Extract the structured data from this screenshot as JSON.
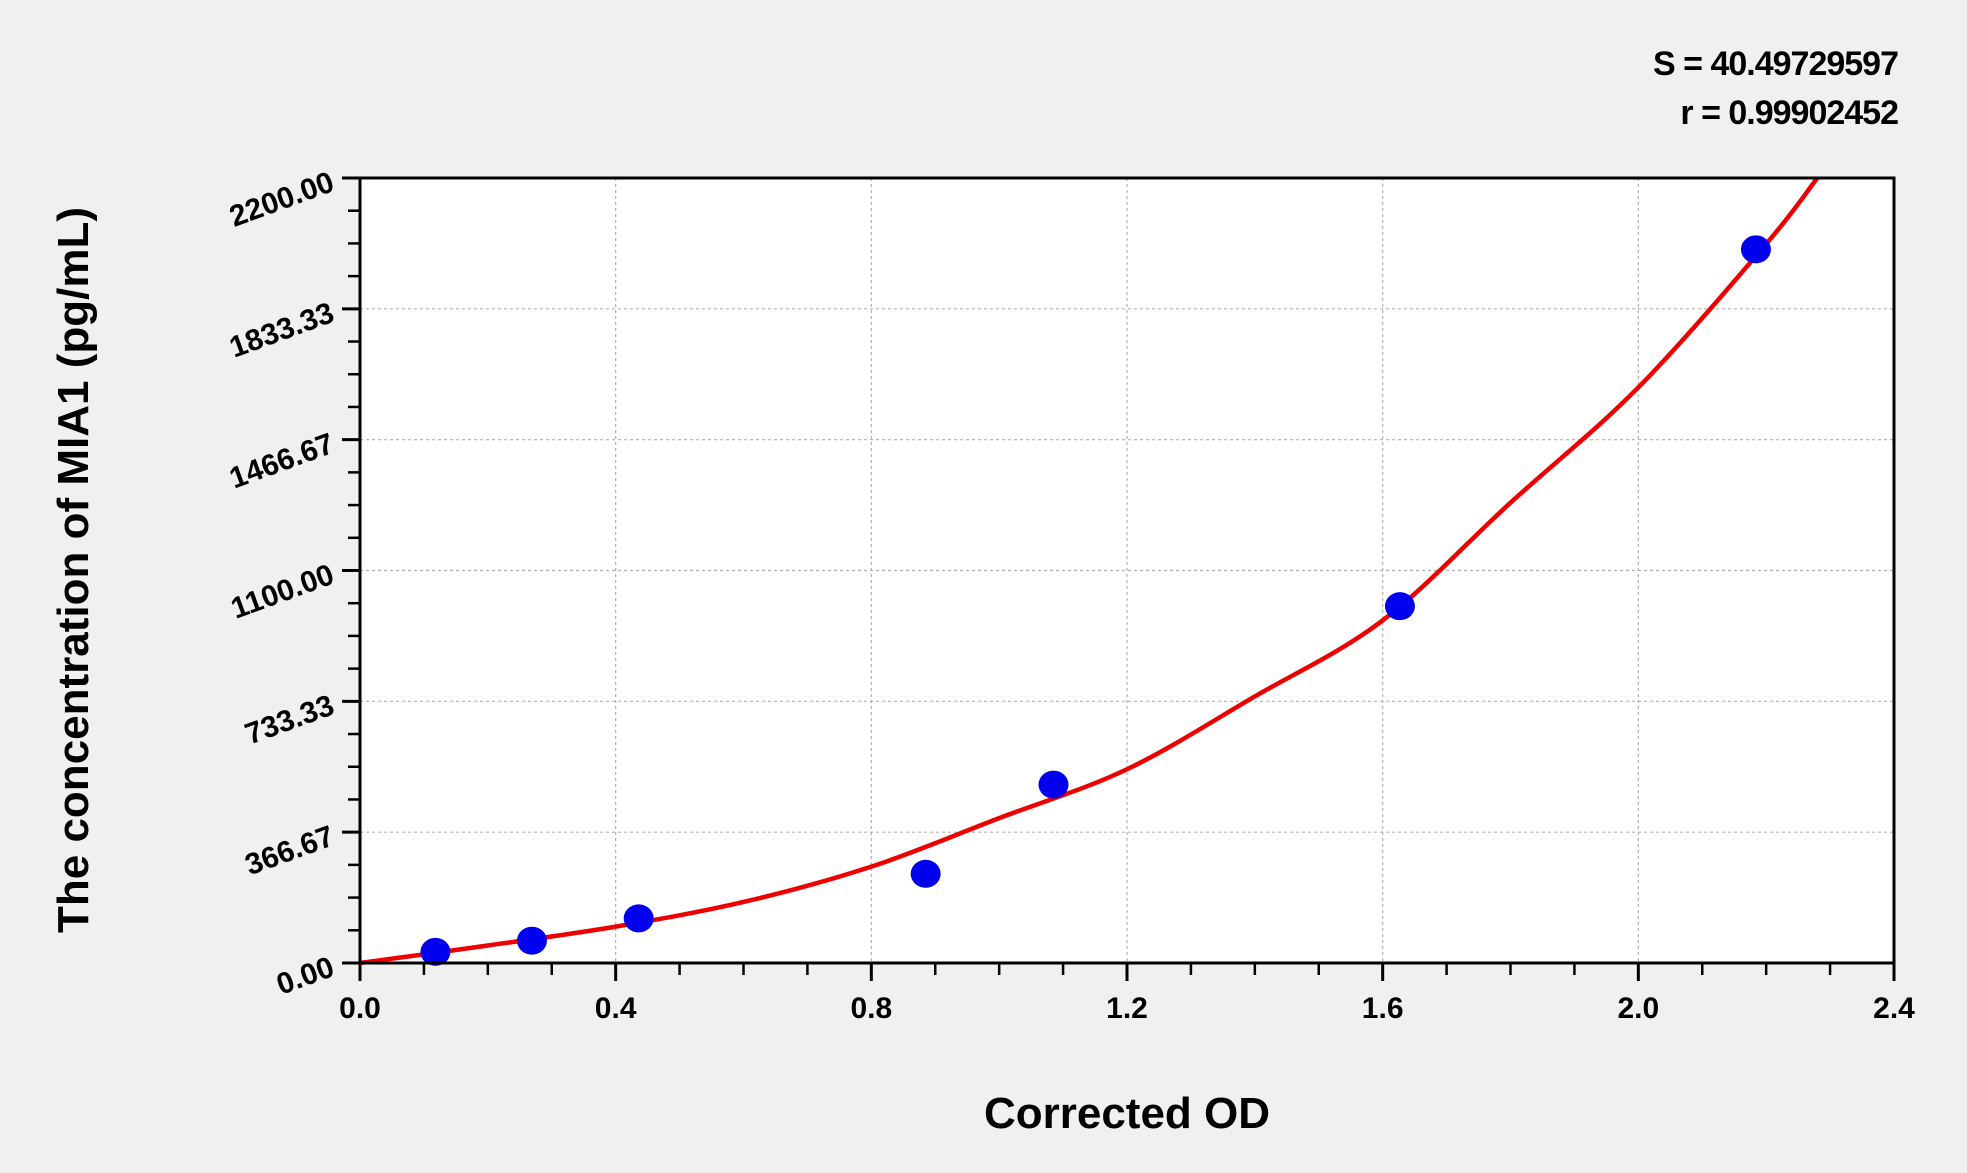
{
  "chart_data": {
    "type": "scatter",
    "title": "",
    "xlabel": "Corrected OD",
    "ylabel": "The concentration of MIA1 (pg/mL)",
    "xlim": [
      0,
      2.4
    ],
    "ylim": [
      0,
      2200
    ],
    "x_ticks": [
      "0.0",
      "0.4",
      "0.8",
      "1.2",
      "1.6",
      "2.0",
      "2.4"
    ],
    "y_ticks": [
      "0.00",
      "366.67",
      "733.33",
      "1100.00",
      "1466.67",
      "1833.33",
      "2200.00"
    ],
    "grid": true,
    "stats": [
      "S = 40.49729597",
      "r = 0.99902452"
    ],
    "points": {
      "color": "#0000ee",
      "x": [
        0.118,
        0.269,
        0.436,
        0.885,
        1.085,
        1.627,
        2.184
      ],
      "y": [
        31.25,
        62.5,
        125,
        250,
        500,
        1000,
        2000
      ]
    },
    "fit_curve": {
      "color": "#ee0000",
      "x": [
        0,
        0.2,
        0.4,
        0.6,
        0.8,
        1.0,
        1.2,
        1.4,
        1.6,
        1.8,
        2.0,
        2.2,
        2.28
      ],
      "y": [
        0,
        49,
        102,
        171,
        270,
        406,
        543,
        747,
        960,
        1290,
        1613,
        2015,
        2200
      ]
    }
  }
}
